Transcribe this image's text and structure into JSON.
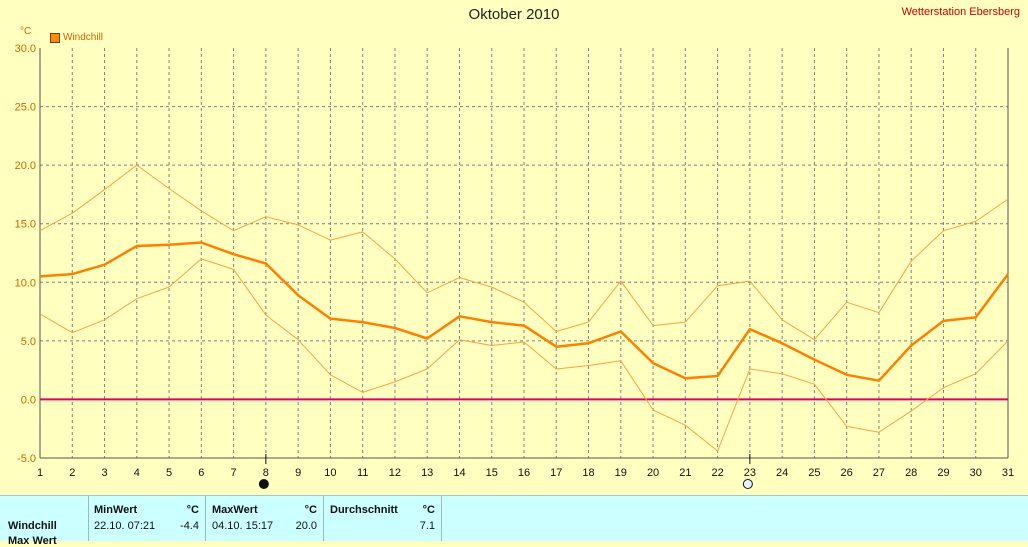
{
  "header": {
    "title": "Oktober 2010",
    "station": "Wetterstation Ebersberg",
    "y_unit": "°C",
    "legend_label": "Windchill"
  },
  "colors": {
    "background": "#ffffc0",
    "main_line": "#ff8000",
    "band_line": "#ffa040",
    "zero_line": "#e0006c",
    "grid": "#808080"
  },
  "chart_data": {
    "type": "line",
    "title": "Oktober 2010",
    "x": [
      1,
      2,
      3,
      4,
      5,
      6,
      7,
      8,
      9,
      10,
      11,
      12,
      13,
      14,
      15,
      16,
      17,
      18,
      19,
      20,
      21,
      22,
      23,
      24,
      25,
      26,
      27,
      28,
      29,
      30,
      31
    ],
    "ylim": [
      -5,
      30
    ],
    "yticks": [
      "-5.0",
      "0.0",
      "5.0",
      "10.0",
      "15.0",
      "20.0",
      "25.0",
      "30.0"
    ],
    "grid": true,
    "legend": "top-left",
    "series": [
      {
        "name": "Windchill",
        "role": "mean",
        "values": [
          10.5,
          10.7,
          11.5,
          13.1,
          13.2,
          13.4,
          12.4,
          11.6,
          8.9,
          6.9,
          6.6,
          6.1,
          5.2,
          7.1,
          6.6,
          6.3,
          4.5,
          4.8,
          5.8,
          3.1,
          1.8,
          2.0,
          6.0,
          4.8,
          3.4,
          2.1,
          1.6,
          4.6,
          6.7,
          7.0,
          10.7
        ]
      },
      {
        "role": "max",
        "values": [
          14.4,
          15.9,
          17.9,
          20.0,
          18.0,
          16.1,
          14.4,
          15.6,
          14.9,
          13.6,
          14.3,
          12.0,
          9.1,
          10.4,
          9.6,
          8.3,
          5.8,
          6.6,
          10.1,
          6.3,
          6.6,
          9.7,
          10.1,
          6.8,
          5.1,
          8.3,
          7.4,
          11.8,
          14.4,
          15.2,
          17.1
        ]
      },
      {
        "role": "min",
        "values": [
          7.3,
          5.7,
          6.8,
          8.6,
          9.6,
          12.0,
          11.1,
          7.2,
          5.1,
          2.1,
          0.6,
          1.5,
          2.6,
          5.1,
          4.6,
          4.9,
          2.6,
          2.9,
          3.3,
          -0.9,
          -2.2,
          -4.4,
          2.6,
          2.2,
          1.3,
          -2.3,
          -2.8,
          -1.0,
          1.0,
          2.2,
          5.0
        ]
      }
    ],
    "markers": [
      {
        "day": 8,
        "symbol": "full-moon"
      },
      {
        "day": 23,
        "symbol": "new-moon"
      }
    ]
  },
  "stats": {
    "row_label": "Windchill",
    "row_label_2": "Max Wert",
    "min_header": "MinWert",
    "min_unit": "°C",
    "min_datetime": "22.10.  07:21",
    "min_value": "-4.4",
    "max_header": "MaxWert",
    "max_unit": "°C",
    "max_datetime": "04.10.  15:17",
    "max_value": "20.0",
    "avg_header": "Durchschnitt",
    "avg_unit": "°C",
    "avg_value": "7.1"
  }
}
